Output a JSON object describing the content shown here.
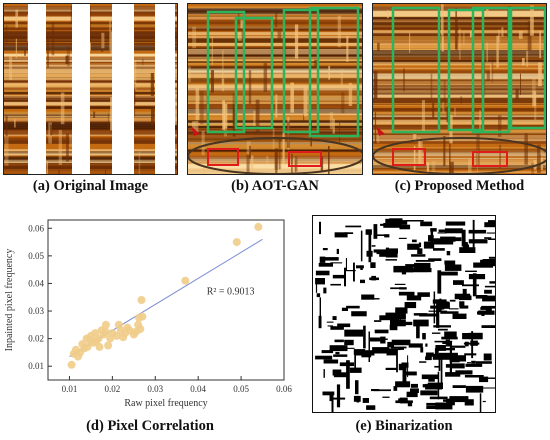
{
  "panels": {
    "a": {
      "caption": "(a) Original Image"
    },
    "b": {
      "caption": "(b) AOT-GAN"
    },
    "c": {
      "caption": "(c) Proposed Method"
    },
    "d": {
      "caption": "(d) Pixel Correlation"
    },
    "e": {
      "caption": "(e) Binarization"
    }
  },
  "colors": {
    "texture_dark": "#6b2c05",
    "texture_mid": "#c46a12",
    "texture_light": "#f2c27a",
    "highlight_box": "#2db55d",
    "defect_box": "#e01b1b",
    "ellipse": "#4a3520",
    "points": "#f0cc88",
    "fit_line": "#7d8fd6"
  },
  "chart_data": {
    "type": "scatter",
    "xlabel": "Raw pixel frequency",
    "ylabel": "Inpainted pixel frequency",
    "xlim": [
      0.005,
      0.06
    ],
    "ylim": [
      0.005,
      0.063
    ],
    "xticks": [
      "0.01",
      "0.02",
      "0.03",
      "0.04",
      "0.05",
      "0.06"
    ],
    "yticks": [
      "0.01",
      "0.02",
      "0.03",
      "0.04",
      "0.05",
      "0.06"
    ],
    "annotation": "R² = 0.9013",
    "fit_line": {
      "x": [
        0.01,
        0.055
      ],
      "y": [
        0.0135,
        0.056
      ]
    },
    "points": [
      [
        0.0105,
        0.0105
      ],
      [
        0.011,
        0.0145
      ],
      [
        0.0115,
        0.016
      ],
      [
        0.012,
        0.0135
      ],
      [
        0.0125,
        0.015
      ],
      [
        0.013,
        0.018
      ],
      [
        0.0135,
        0.0165
      ],
      [
        0.014,
        0.02
      ],
      [
        0.0142,
        0.017
      ],
      [
        0.0148,
        0.0195
      ],
      [
        0.015,
        0.021
      ],
      [
        0.0155,
        0.0185
      ],
      [
        0.016,
        0.022
      ],
      [
        0.0162,
        0.019
      ],
      [
        0.0168,
        0.02
      ],
      [
        0.017,
        0.017
      ],
      [
        0.0175,
        0.023
      ],
      [
        0.018,
        0.0215
      ],
      [
        0.0185,
        0.025
      ],
      [
        0.019,
        0.0175
      ],
      [
        0.0195,
        0.02
      ],
      [
        0.02,
        0.022
      ],
      [
        0.021,
        0.021
      ],
      [
        0.022,
        0.023
      ],
      [
        0.0225,
        0.0205
      ],
      [
        0.023,
        0.022
      ],
      [
        0.0235,
        0.024
      ],
      [
        0.024,
        0.023
      ],
      [
        0.025,
        0.0215
      ],
      [
        0.0255,
        0.0225
      ],
      [
        0.026,
        0.025
      ],
      [
        0.0262,
        0.0275
      ],
      [
        0.0265,
        0.0235
      ],
      [
        0.027,
        0.028
      ],
      [
        0.0268,
        0.034
      ],
      [
        0.037,
        0.041
      ],
      [
        0.049,
        0.055
      ],
      [
        0.054,
        0.0605
      ],
      [
        0.0185,
        0.0225
      ],
      [
        0.0215,
        0.025
      ]
    ]
  }
}
